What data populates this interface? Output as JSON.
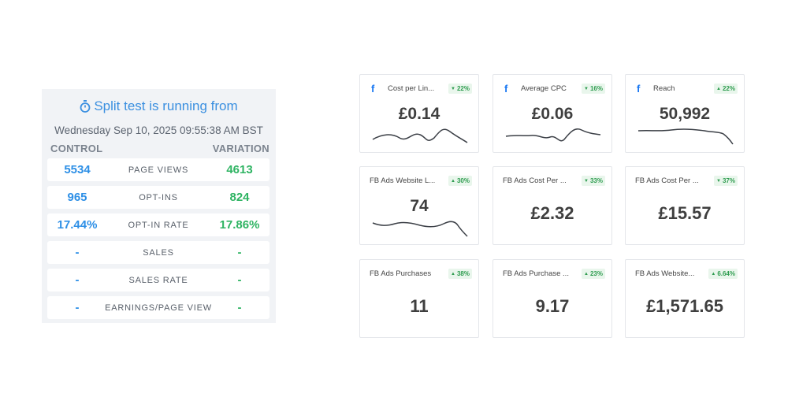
{
  "split_test": {
    "title": "Split test is running from",
    "date": "Wednesday Sep 10, 2025 09:55:38 AM BST",
    "control_label": "CONTROL",
    "variation_label": "VARIATION",
    "rows": [
      {
        "label": "PAGE VIEWS",
        "control": "5534",
        "variation": "4613"
      },
      {
        "label": "OPT-INS",
        "control": "965",
        "variation": "824"
      },
      {
        "label": "OPT-IN RATE",
        "control": "17.44%",
        "variation": "17.86%"
      },
      {
        "label": "SALES",
        "control": "-",
        "variation": "-"
      },
      {
        "label": "SALES RATE",
        "control": "-",
        "variation": "-"
      },
      {
        "label": "EARNINGS/PAGE VIEW",
        "control": "-",
        "variation": "-"
      }
    ]
  },
  "cards": [
    {
      "title": "Cost per Lin...",
      "badge": "22%",
      "trend": "down",
      "value": "£0.14",
      "icon": "facebook-icon"
    },
    {
      "title": "Average CPC",
      "badge": "16%",
      "trend": "down",
      "value": "£0.06",
      "icon": "facebook-icon"
    },
    {
      "title": "Reach",
      "badge": "22%",
      "trend": "up",
      "value": "50,992",
      "icon": "facebook-icon"
    },
    {
      "title": "FB Ads Website L...",
      "badge": "30%",
      "trend": "up",
      "value": "74"
    },
    {
      "title": "FB Ads Cost Per ...",
      "badge": "33%",
      "trend": "down",
      "value": "£2.32"
    },
    {
      "title": "FB Ads Cost Per ...",
      "badge": "37%",
      "trend": "down",
      "value": "£15.57"
    },
    {
      "title": "FB Ads Purchases",
      "badge": "38%",
      "trend": "up",
      "value": "11"
    },
    {
      "title": "FB Ads Purchase ...",
      "badge": "23%",
      "trend": "up",
      "value": "9.17"
    },
    {
      "title": "FB Ads Website...",
      "badge": "6.64%",
      "trend": "up",
      "value": "£1,571.65"
    }
  ],
  "colors": {
    "accent_blue": "#3a8fe0",
    "control_blue": "#2d8fe6",
    "variation_green": "#2fb463",
    "badge_green": "#2e9c4f",
    "facebook_blue": "#1877f2"
  }
}
